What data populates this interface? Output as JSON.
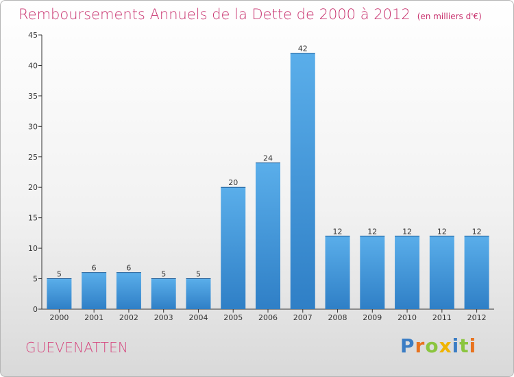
{
  "chart_data": {
    "type": "bar",
    "title": "Remboursements Annuels de la Dette de 2000 à 2012",
    "unit": "(en milliers d'€)",
    "categories": [
      "2000",
      "2001",
      "2002",
      "2003",
      "2004",
      "2005",
      "2006",
      "2007",
      "2008",
      "2009",
      "2010",
      "2011",
      "2012"
    ],
    "values": [
      5,
      6,
      6,
      5,
      5,
      20,
      24,
      42,
      12,
      12,
      12,
      12,
      12
    ],
    "ylim": [
      0,
      45
    ],
    "yticks": [
      0,
      5,
      10,
      15,
      20,
      25,
      30,
      35,
      40,
      45
    ],
    "xlabel": "",
    "ylabel": "",
    "grid": false,
    "bar_color": "#3f93d8"
  },
  "commune": "GUEVENATTEN",
  "logo": {
    "text": "Proxiti",
    "letter_colors": [
      "#3b7dc4",
      "#e8731f",
      "#8bc53f",
      "#f0b400",
      "#3b7dc4",
      "#8bc53f",
      "#e8731f"
    ]
  }
}
